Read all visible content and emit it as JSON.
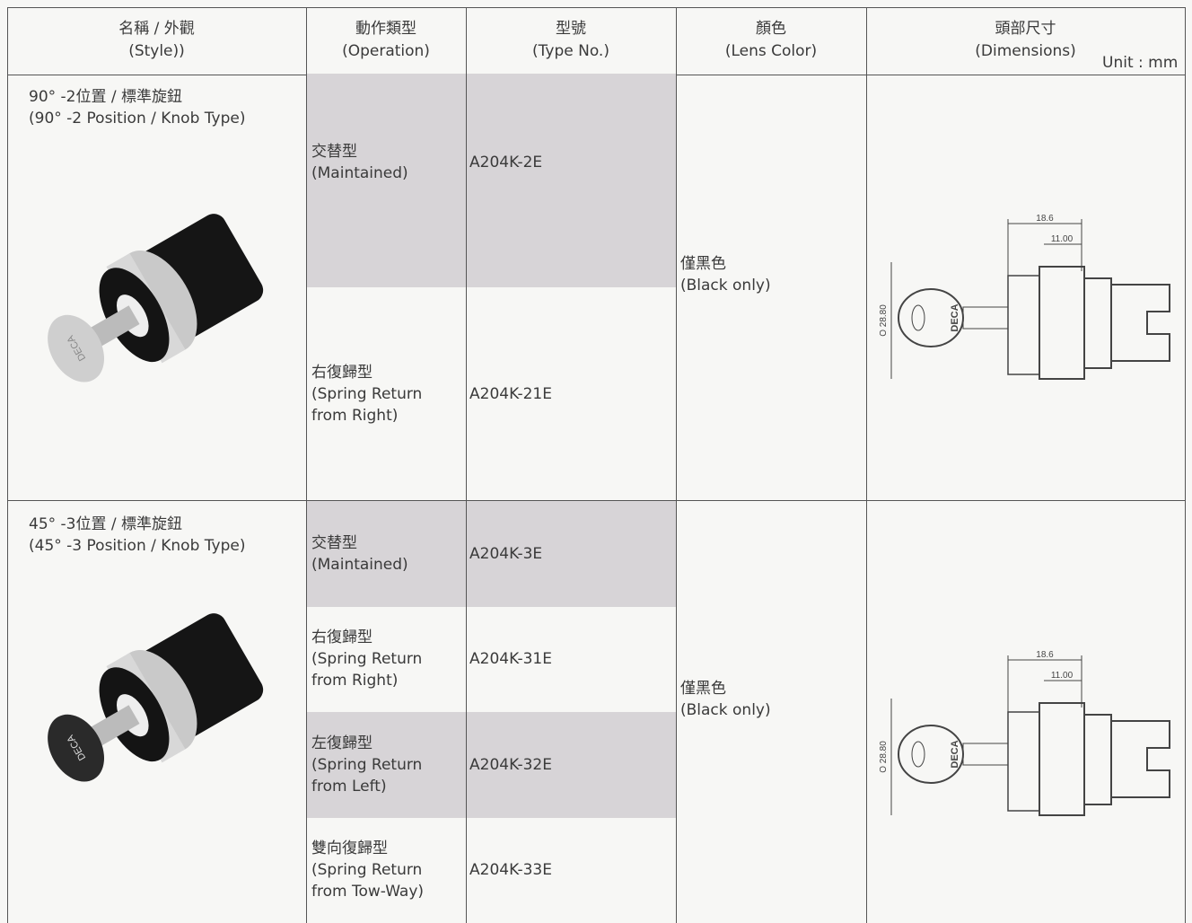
{
  "header": {
    "columns": [
      {
        "zh": "名稱 / 外觀",
        "en": "(Style))"
      },
      {
        "zh": "動作類型",
        "en": "(Operation)"
      },
      {
        "zh": "型號",
        "en": "(Type No.)"
      },
      {
        "zh": "顏色",
        "en": "(Lens Color)"
      },
      {
        "zh": "頭部尺寸",
        "en": "(Dimensions)"
      }
    ],
    "unit": "Unit : mm"
  },
  "sections": [
    {
      "style_zh": "90° -2位置 / 標準旋鈕",
      "style_en": "(90° -2 Position / Knob Type)",
      "color_zh": "僅黑色",
      "color_en": "(Black only)",
      "photo_brand": "DECA",
      "dims": {
        "length": "18.6",
        "head": "11.00",
        "diameter": "O 28.80",
        "brand": "DECA"
      },
      "rows": [
        {
          "op_zh": "交替型",
          "op_en": [
            "(Maintained)"
          ],
          "type": "A204K-2E"
        },
        {
          "op_zh": "右復歸型",
          "op_en": [
            "(Spring Return",
            "from Right)"
          ],
          "type": "A204K-21E"
        }
      ]
    },
    {
      "style_zh": "45° -3位置 / 標準旋鈕",
      "style_en": "(45° -3 Position / Knob Type)",
      "color_zh": "僅黑色",
      "color_en": "(Black only)",
      "photo_brand": "DECA",
      "dims": {
        "length": "18.6",
        "head": "11.00",
        "diameter": "O 28.80",
        "brand": "DECA"
      },
      "rows": [
        {
          "op_zh": "交替型",
          "op_en": [
            "(Maintained)"
          ],
          "type": "A204K-3E"
        },
        {
          "op_zh": "右復歸型",
          "op_en": [
            "(Spring Return",
            "from Right)"
          ],
          "type": "A204K-31E"
        },
        {
          "op_zh": "左復歸型",
          "op_en": [
            "(Spring Return",
            "from Left)"
          ],
          "type": "A204K-32E"
        },
        {
          "op_zh": "雙向復歸型",
          "op_en": [
            "(Spring Return",
            "from Tow-Way)"
          ],
          "type": "A204K-33E"
        }
      ]
    }
  ]
}
